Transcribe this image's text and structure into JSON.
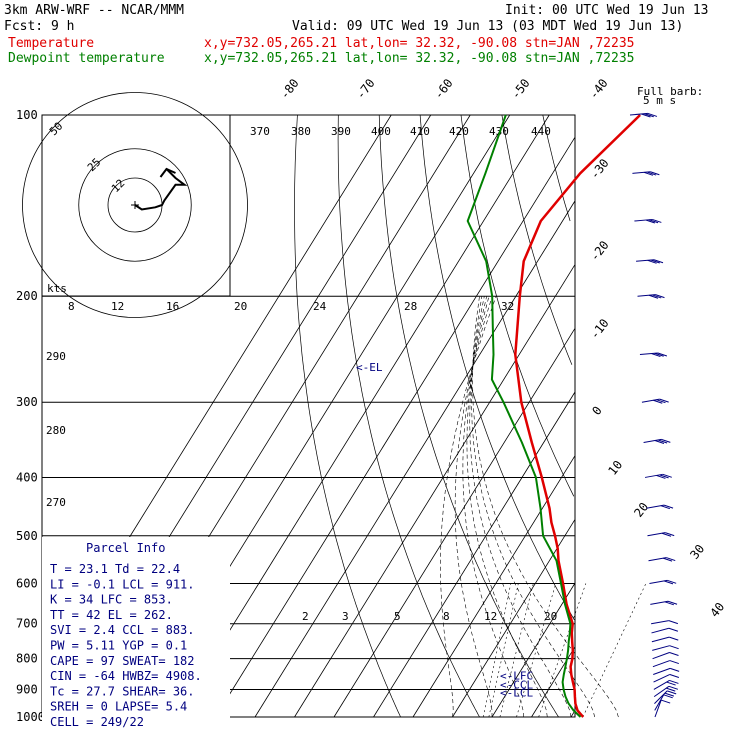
{
  "header": {
    "model": "3km ARW-WRF -- NCAR/MMM",
    "init": "Init: 00 UTC Wed 19 Jun 13",
    "fcst": "Fcst:     9 h",
    "valid": "Valid: 09 UTC Wed 19 Jun 13 (03 MDT Wed 19 Jun 13)",
    "temp_label": "Temperature",
    "temp_loc": "x,y=732.05,265.21   lat,lon= 32.32, -90.08   stn=JAN ,72235",
    "dew_label": "Dewpoint temperature",
    "dew_loc": "x,y=732.05,265.21   lat,lon= 32.32, -90.08   stn=JAN ,72235",
    "barb_note_1": "Full barb:",
    "barb_note_2": "5 m s"
  },
  "colors": {
    "temperature": "#e00000",
    "dewpoint": "#008000",
    "annotation": "#000080",
    "isobar": "#000000"
  },
  "axes": {
    "pressure_levels": [
      100,
      200,
      300,
      400,
      500,
      600,
      700,
      800,
      900,
      1000
    ],
    "pressure_labels": [
      "100",
      "200",
      "300",
      "400",
      "500",
      "600",
      "700",
      "800",
      "900",
      "1000"
    ],
    "isotherm_labels": [
      "-80",
      "-70",
      "-60",
      "-50",
      "-40",
      "-30",
      "-20",
      "-10",
      "0",
      "10",
      "20",
      "30",
      "40"
    ],
    "theta_labels": [
      "370",
      "380",
      "390",
      "400",
      "410",
      "420",
      "430",
      "440"
    ],
    "theta_side_labels": [
      "290",
      "280",
      "270"
    ],
    "mixing_ratio_labels": [
      "2",
      "3",
      "5",
      "8",
      "12",
      "20"
    ],
    "hodograph_speed_labels": [
      "8",
      "12",
      "16",
      "20",
      "24",
      "28",
      "32"
    ],
    "hodograph_kts": "kts",
    "hodograph_ring_labels": [
      "50",
      "25",
      "12"
    ]
  },
  "annotations": {
    "el": "<-EL",
    "lfc": "<-LFC",
    "ccl": "<-CCL",
    "lcl": "<-LCL"
  },
  "parcel_info": {
    "title": "Parcel Info",
    "rows": [
      "T  =    23.1  Td =  22.4",
      "LI =    -0.1  LCL =  911.",
      "K  =      34  LFC =  853.",
      "TT =      42  EL  =  262.",
      "SVI =    2.4  CCL =  883.",
      "PW =    5.11  YGP =   0.1",
      "CAPE =    97  SWEAT=  182",
      "CIN =    -64  HWBZ= 4908.",
      "Tc =    27.7  SHEAR=  36.",
      "SREH =     0  LAPSE=  5.4",
      "CELL = 249/22"
    ]
  },
  "chart_data": {
    "type": "line",
    "title": "",
    "xlabel": "",
    "ylabel": "",
    "y_axis": "pressure (hPa), log scale, 100 to 1000",
    "series": [
      {
        "name": "Temperature",
        "pressure": [
          1000,
          975,
          950,
          925,
          900,
          875,
          850,
          825,
          800,
          775,
          750,
          725,
          700,
          650,
          600,
          550,
          525,
          500,
          475,
          450,
          400,
          350,
          300,
          250,
          200,
          175,
          150,
          125,
          100
        ],
        "values": [
          23.1,
          20.6,
          19.0,
          17.8,
          16.6,
          15.0,
          13.4,
          12.0,
          11.2,
          10.0,
          8.5,
          7.0,
          5.8,
          1.2,
          -3.0,
          -7.7,
          -9.8,
          -12.5,
          -15.5,
          -18.2,
          -25.0,
          -33.0,
          -42.0,
          -51.0,
          -59.0,
          -63.5,
          -65.5,
          -63.0,
          -57.0
        ]
      },
      {
        "name": "Dewpoint temperature",
        "pressure": [
          1000,
          975,
          950,
          925,
          900,
          875,
          850,
          825,
          800,
          775,
          750,
          725,
          700,
          650,
          600,
          550,
          500,
          450,
          400,
          350,
          300,
          275,
          250,
          225,
          200,
          175,
          150,
          125,
          100
        ],
        "values": [
          22.4,
          19.6,
          17.3,
          15.4,
          13.8,
          12.4,
          11.5,
          10.7,
          9.8,
          8.8,
          7.6,
          6.5,
          5.2,
          0.8,
          -3.5,
          -8.2,
          -15.5,
          -20.5,
          -26.5,
          -35.5,
          -46.5,
          -53.0,
          -56.5,
          -61.0,
          -66.0,
          -73.0,
          -84.0,
          -87.0,
          -91.0
        ]
      }
    ],
    "wind_barbs": {
      "pressure": [
        1000,
        975,
        950,
        925,
        900,
        875,
        850,
        825,
        800,
        775,
        750,
        725,
        700,
        650,
        600,
        550,
        500,
        450,
        400,
        350,
        300,
        250,
        200,
        175,
        150,
        125,
        100
      ],
      "speed_ms": [
        6,
        8,
        10,
        10,
        10,
        9,
        8,
        8,
        8,
        8,
        8,
        8,
        9,
        10,
        11,
        12,
        13,
        14,
        15,
        15,
        16,
        17,
        18,
        18,
        17,
        16,
        15
      ],
      "direction_deg": [
        200,
        210,
        225,
        235,
        240,
        245,
        250,
        250,
        250,
        255,
        255,
        255,
        260,
        260,
        260,
        260,
        260,
        260,
        260,
        260,
        260,
        265,
        265,
        265,
        265,
        265,
        265
      ]
    },
    "hodograph": {
      "u_kt": [
        0,
        3,
        9,
        12,
        13,
        18,
        22,
        18,
        14
      ],
      "v_kt": [
        0,
        -2,
        -1,
        0,
        2,
        9,
        9,
        12,
        16
      ]
    },
    "grid": true
  }
}
